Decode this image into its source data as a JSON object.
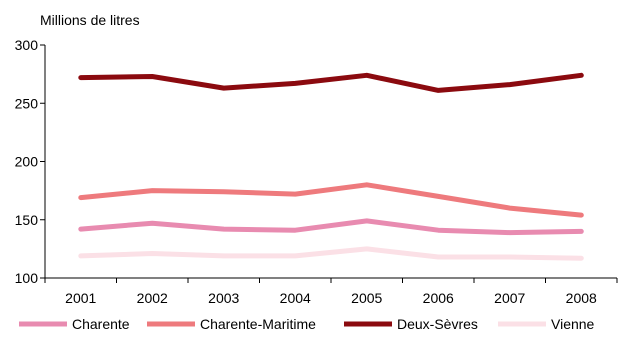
{
  "chart_data": {
    "type": "line",
    "title": "",
    "xlabel": "",
    "ylabel": "Millions de litres",
    "categories": [
      "2001",
      "2002",
      "2003",
      "2004",
      "2005",
      "2006",
      "2007",
      "2008"
    ],
    "ylim": [
      100,
      300
    ],
    "yticks": [
      100,
      150,
      200,
      250,
      300
    ],
    "grid": false,
    "legend_position": "bottom",
    "series": [
      {
        "name": "Charente",
        "color": "#e88bb0",
        "values": [
          142,
          147,
          142,
          141,
          149,
          141,
          139,
          140
        ]
      },
      {
        "name": "Charente-Maritime",
        "color": "#ee7a7d",
        "values": [
          169,
          175,
          174,
          172,
          180,
          170,
          160,
          154
        ]
      },
      {
        "name": "Deux-Sèvres",
        "color": "#8b0a0f",
        "values": [
          272,
          273,
          263,
          267,
          274,
          261,
          266,
          274
        ]
      },
      {
        "name": "Vienne",
        "color": "#fbe0e6",
        "values": [
          119,
          121,
          119,
          119,
          125,
          118,
          118,
          117
        ]
      }
    ]
  }
}
